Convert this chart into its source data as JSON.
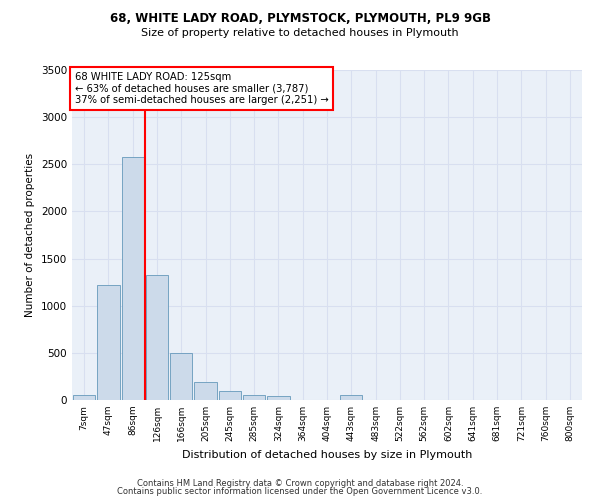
{
  "title1": "68, WHITE LADY ROAD, PLYMSTOCK, PLYMOUTH, PL9 9GB",
  "title2": "Size of property relative to detached houses in Plymouth",
  "xlabel": "Distribution of detached houses by size in Plymouth",
  "ylabel": "Number of detached properties",
  "bar_labels": [
    "7sqm",
    "47sqm",
    "86sqm",
    "126sqm",
    "166sqm",
    "205sqm",
    "245sqm",
    "285sqm",
    "324sqm",
    "364sqm",
    "404sqm",
    "443sqm",
    "483sqm",
    "522sqm",
    "562sqm",
    "602sqm",
    "641sqm",
    "681sqm",
    "721sqm",
    "760sqm",
    "800sqm"
  ],
  "bar_values": [
    50,
    1220,
    2580,
    1330,
    500,
    190,
    100,
    50,
    40,
    0,
    0,
    50,
    0,
    0,
    0,
    0,
    0,
    0,
    0,
    0,
    0
  ],
  "bar_color": "#ccdaea",
  "bar_edge_color": "#6699bb",
  "grid_color": "#d8dff0",
  "axes_background": "#eaf0f8",
  "red_line_x": 2.5,
  "annotation_line1": "68 WHITE LADY ROAD: 125sqm",
  "annotation_line2": "← 63% of detached houses are smaller (3,787)",
  "annotation_line3": "37% of semi-detached houses are larger (2,251) →",
  "ylim": [
    0,
    3500
  ],
  "yticks": [
    0,
    500,
    1000,
    1500,
    2000,
    2500,
    3000,
    3500
  ],
  "footer1": "Contains HM Land Registry data © Crown copyright and database right 2024.",
  "footer2": "Contains public sector information licensed under the Open Government Licence v3.0."
}
